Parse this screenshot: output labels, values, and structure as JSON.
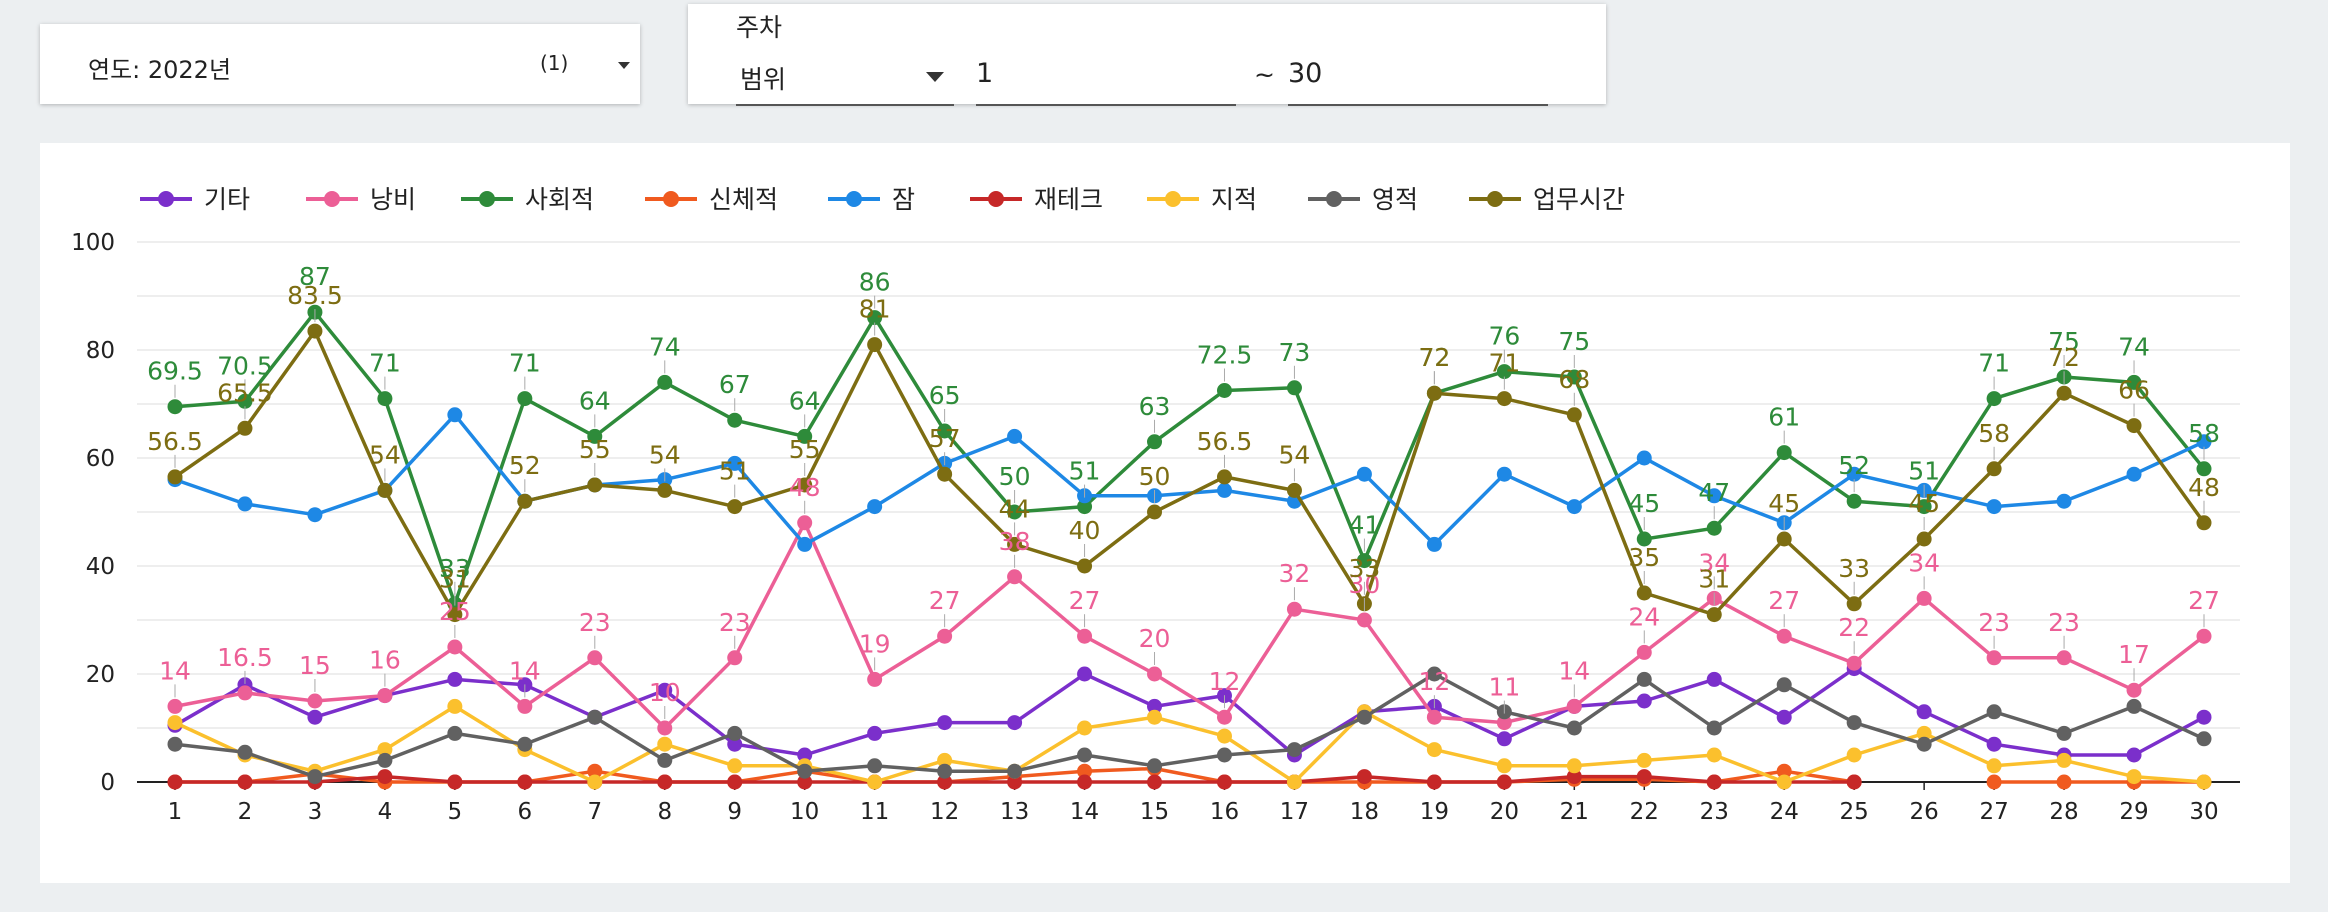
{
  "filters": {
    "year_label": "연도: 2022년",
    "year_count": "(1)",
    "week_title": "주차",
    "range_mode": "범위",
    "from": "1",
    "tilde": "~",
    "to": "30"
  },
  "chart_data": {
    "type": "line",
    "x": [
      1,
      2,
      3,
      4,
      5,
      6,
      7,
      8,
      9,
      10,
      11,
      12,
      13,
      14,
      15,
      16,
      17,
      18,
      19,
      20,
      21,
      22,
      23,
      24,
      25,
      26,
      27,
      28,
      29,
      30
    ],
    "ylim": [
      0,
      100
    ],
    "yticks": [
      0,
      20,
      40,
      60,
      80,
      100
    ],
    "grid": true,
    "legend_position": "top",
    "series": [
      {
        "name": "기타",
        "color": "#7b2fcb",
        "labels": false,
        "values": [
          10.5,
          18,
          12,
          16,
          19,
          18,
          12,
          17,
          7,
          5,
          9,
          11,
          11,
          20,
          14,
          16,
          5,
          13,
          14,
          8,
          14,
          15,
          19,
          12,
          21,
          13,
          7,
          5,
          5,
          12
        ]
      },
      {
        "name": "낭비",
        "color": "#ec5f96",
        "labels": true,
        "values": [
          14,
          16.5,
          15,
          16,
          25,
          14,
          23,
          10,
          23,
          48,
          19,
          27,
          38,
          27,
          20,
          12,
          32,
          30,
          12,
          11,
          14,
          24,
          34,
          27,
          22,
          34,
          23,
          23,
          17,
          27
        ]
      },
      {
        "name": "사회적",
        "color": "#2e8b3a",
        "labels": true,
        "values": [
          69.5,
          70.5,
          87,
          71,
          33,
          71,
          64,
          74,
          67,
          64,
          86,
          65,
          50,
          51,
          63,
          72.5,
          73,
          41,
          72,
          76,
          75,
          45,
          47,
          61,
          52,
          51,
          71,
          75,
          74,
          58
        ]
      },
      {
        "name": "신체적",
        "color": "#f05a1f",
        "labels": false,
        "values": [
          0,
          0,
          1.5,
          0,
          0,
          0,
          2,
          0,
          0,
          2,
          0,
          0,
          1,
          2,
          2.5,
          0,
          0,
          0,
          0,
          0,
          0.5,
          0.5,
          0,
          2,
          0,
          null,
          0,
          0,
          0,
          0
        ]
      },
      {
        "name": "잠",
        "color": "#1e88e5",
        "labels": false,
        "values": [
          56,
          51.5,
          49.5,
          54,
          68,
          52,
          55,
          56,
          59,
          44,
          51,
          59,
          64,
          53,
          53,
          54,
          52,
          57,
          44,
          57,
          51,
          60,
          53,
          48,
          57,
          54,
          51,
          52,
          57,
          63
        ]
      },
      {
        "name": "재테크",
        "color": "#c62828",
        "labels": false,
        "values": [
          0,
          0,
          0,
          1,
          0,
          0,
          0,
          0,
          0,
          0,
          0,
          0,
          0,
          0,
          0,
          0,
          0,
          1,
          0,
          0,
          1,
          1,
          0,
          0,
          0,
          null,
          null,
          null,
          null,
          null
        ]
      },
      {
        "name": "지적",
        "color": "#fbc02d",
        "labels": false,
        "values": [
          11,
          5,
          2,
          6,
          14,
          6,
          0,
          7,
          3,
          3,
          0,
          4,
          2,
          10,
          12,
          8.5,
          0,
          13,
          6,
          3,
          3,
          4,
          5,
          0,
          5,
          9,
          3,
          4,
          1,
          0
        ]
      },
      {
        "name": "영적",
        "color": "#616161",
        "labels": false,
        "values": [
          7,
          5.5,
          1,
          4,
          9,
          7,
          12,
          4,
          9,
          2,
          3,
          2,
          2,
          5,
          3,
          5,
          6,
          12,
          20,
          13,
          10,
          19,
          10,
          18,
          11,
          7,
          13,
          9,
          14,
          8
        ]
      },
      {
        "name": "업무시간",
        "color": "#7d6d12",
        "labels": true,
        "values": [
          56.5,
          65.5,
          83.5,
          54,
          31,
          52,
          55,
          54,
          51,
          55,
          81,
          57,
          44,
          40,
          50,
          56.5,
          54,
          33,
          72,
          71,
          68,
          35,
          31,
          45,
          33,
          45,
          58,
          72,
          66,
          48
        ]
      }
    ]
  }
}
